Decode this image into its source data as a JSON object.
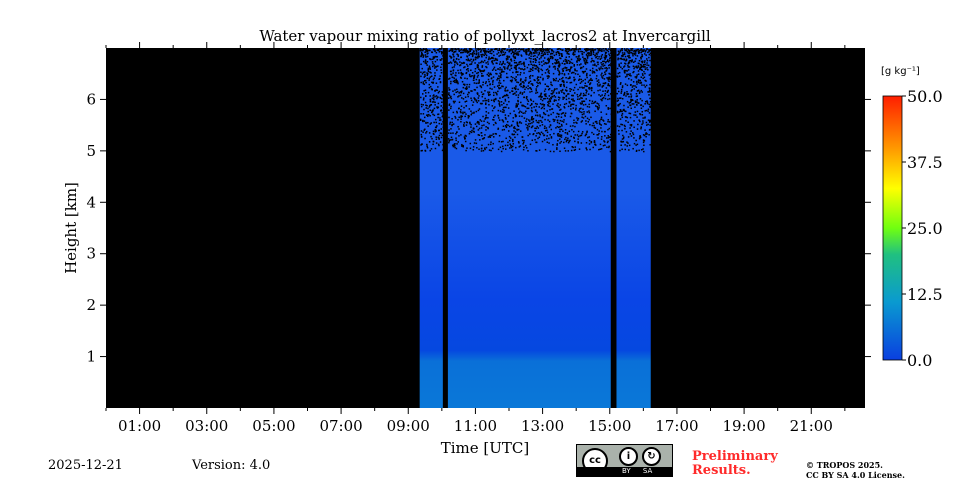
{
  "chart_data": {
    "type": "heatmap",
    "title": "Water vapour mixing ratio of pollyxt_lacros2 at Invercargill",
    "xlabel": "Time [UTC]",
    "ylabel": "Height [km]",
    "xlim_hours": [
      0,
      22.6
    ],
    "ylim_km": [
      0,
      7.0
    ],
    "x_ticks": [
      "01:00",
      "03:00",
      "05:00",
      "07:00",
      "09:00",
      "11:00",
      "13:00",
      "15:00",
      "17:00",
      "19:00",
      "21:00"
    ],
    "x_tick_hours": [
      1,
      3,
      5,
      7,
      9,
      11,
      13,
      15,
      17,
      19,
      21
    ],
    "y_ticks": [
      1,
      2,
      3,
      4,
      5,
      6
    ],
    "data_segments_hours": [
      [
        9.34,
        10.03
      ],
      [
        10.18,
        15.03
      ],
      [
        15.2,
        16.22
      ]
    ],
    "noise_above_km": 5.0,
    "colorbar": {
      "label": "[g kg⁻¹]",
      "min": 0,
      "max": 50,
      "ticks": [
        "0.0",
        "12.5",
        "25.0",
        "37.5",
        "50.0"
      ],
      "colors": [
        "#0a3fe0",
        "#0a9ad0",
        "#20c080",
        "#70ff10",
        "#ffff00",
        "#ff9a00",
        "#ff1e00"
      ]
    },
    "background_color": "#000000"
  },
  "footer": {
    "date": "2025-12-21",
    "version": "Version: 4.0",
    "preliminary": "Preliminary\nResults.",
    "prelim_line1": "Preliminary",
    "prelim_line2": "Results.",
    "copyright1": "© TROPOS 2025.",
    "copyright2": "CC BY SA 4.0 License.",
    "license_badge": "CC BY SA"
  }
}
